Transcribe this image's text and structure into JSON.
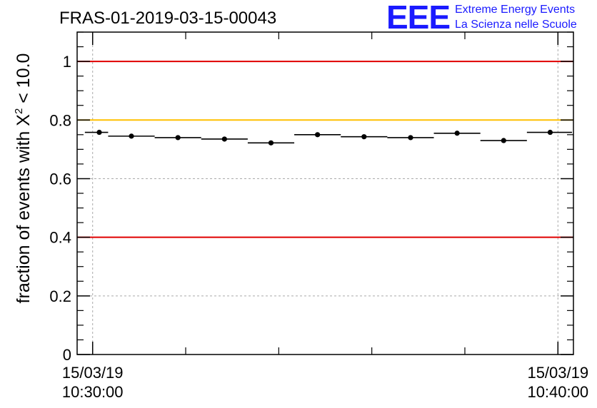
{
  "title": "FRAS-01-2019-03-15-00043",
  "logo": {
    "mark": "EEE",
    "line1": "Extreme Energy Events",
    "line2": "La Scienza nelle Scuole",
    "color": "#1a1aff"
  },
  "chart_data": {
    "type": "scatter",
    "title": "FRAS-01-2019-03-15-00043",
    "ylabel_parts": {
      "prefix": "fraction of events with ",
      "symbol": "X",
      "sup": "2",
      "suffix": " < 10.0"
    },
    "xlabel": "",
    "xlim": [
      "2019-03-15 10:29:40",
      "2019-03-15 10:40:20"
    ],
    "ylim": [
      0,
      1.1
    ],
    "yticks": [
      0,
      0.2,
      0.4,
      0.6,
      0.8,
      1
    ],
    "ytick_labels": [
      "0",
      "0.2",
      "0.4",
      "0.6",
      "0.8",
      "1"
    ],
    "x_major_ticks": [
      "2019-03-15 10:30:00",
      "2019-03-15 10:40:00"
    ],
    "x_major_tick_labels": [
      {
        "date": "15/03/19",
        "time": "10:30:00"
      },
      {
        "date": "15/03/19",
        "time": "10:40:00"
      }
    ],
    "grid": true,
    "reference_lines": [
      {
        "y": 1.0,
        "color": "#e00000"
      },
      {
        "y": 0.8,
        "color": "#ffc000"
      },
      {
        "y": 0.4,
        "color": "#e00000"
      }
    ],
    "series": [
      {
        "marker_color": "#000000",
        "points": [
          {
            "t_start": "10:29:50",
            "t_end": "10:30:20",
            "y": 0.758
          },
          {
            "t_start": "10:30:20",
            "t_end": "10:31:20",
            "y": 0.745
          },
          {
            "t_start": "10:31:20",
            "t_end": "10:32:20",
            "y": 0.74
          },
          {
            "t_start": "10:32:20",
            "t_end": "10:33:20",
            "y": 0.735
          },
          {
            "t_start": "10:33:20",
            "t_end": "10:34:20",
            "y": 0.722
          },
          {
            "t_start": "10:34:20",
            "t_end": "10:35:20",
            "y": 0.75
          },
          {
            "t_start": "10:35:20",
            "t_end": "10:36:20",
            "y": 0.743
          },
          {
            "t_start": "10:36:20",
            "t_end": "10:37:20",
            "y": 0.74
          },
          {
            "t_start": "10:37:20",
            "t_end": "10:38:20",
            "y": 0.755
          },
          {
            "t_start": "10:38:20",
            "t_end": "10:39:20",
            "y": 0.73
          },
          {
            "t_start": "10:39:20",
            "t_end": "10:40:20",
            "y": 0.758
          }
        ]
      }
    ]
  }
}
